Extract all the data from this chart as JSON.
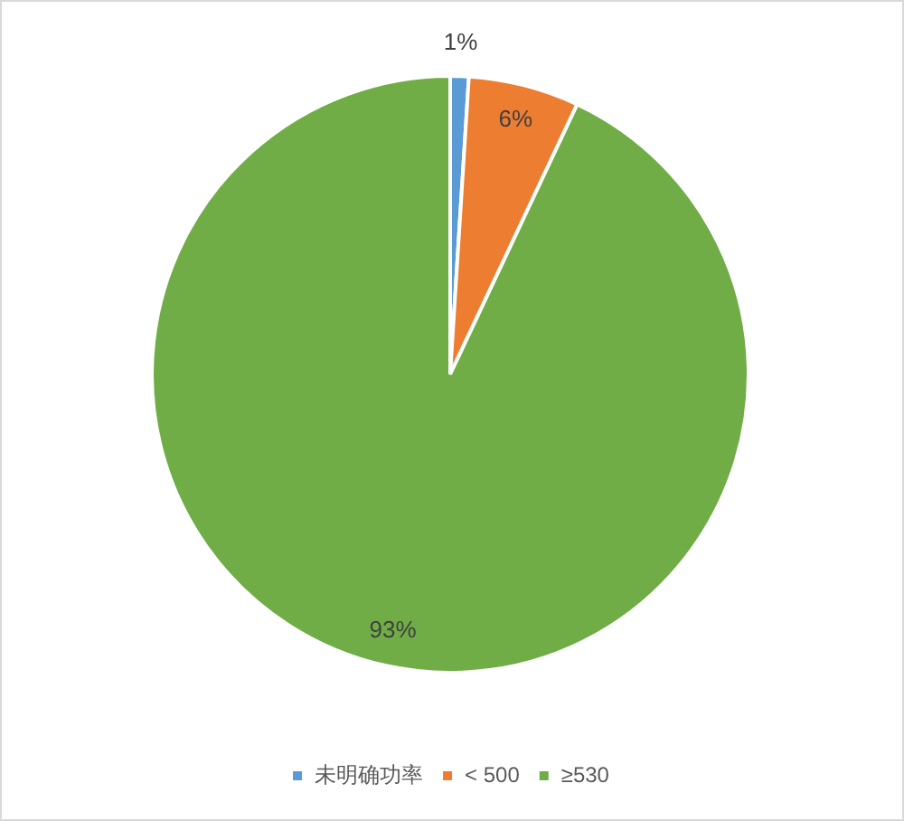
{
  "chart_data": {
    "type": "pie",
    "categories": [
      "未明确功率",
      "< 500",
      "≥530"
    ],
    "values": [
      1,
      6,
      93
    ],
    "colors": [
      "#5b9bd5",
      "#ed7d31",
      "#70ad47"
    ],
    "value_labels": [
      "1%",
      "6%",
      "93%"
    ],
    "legend": "bottom"
  }
}
